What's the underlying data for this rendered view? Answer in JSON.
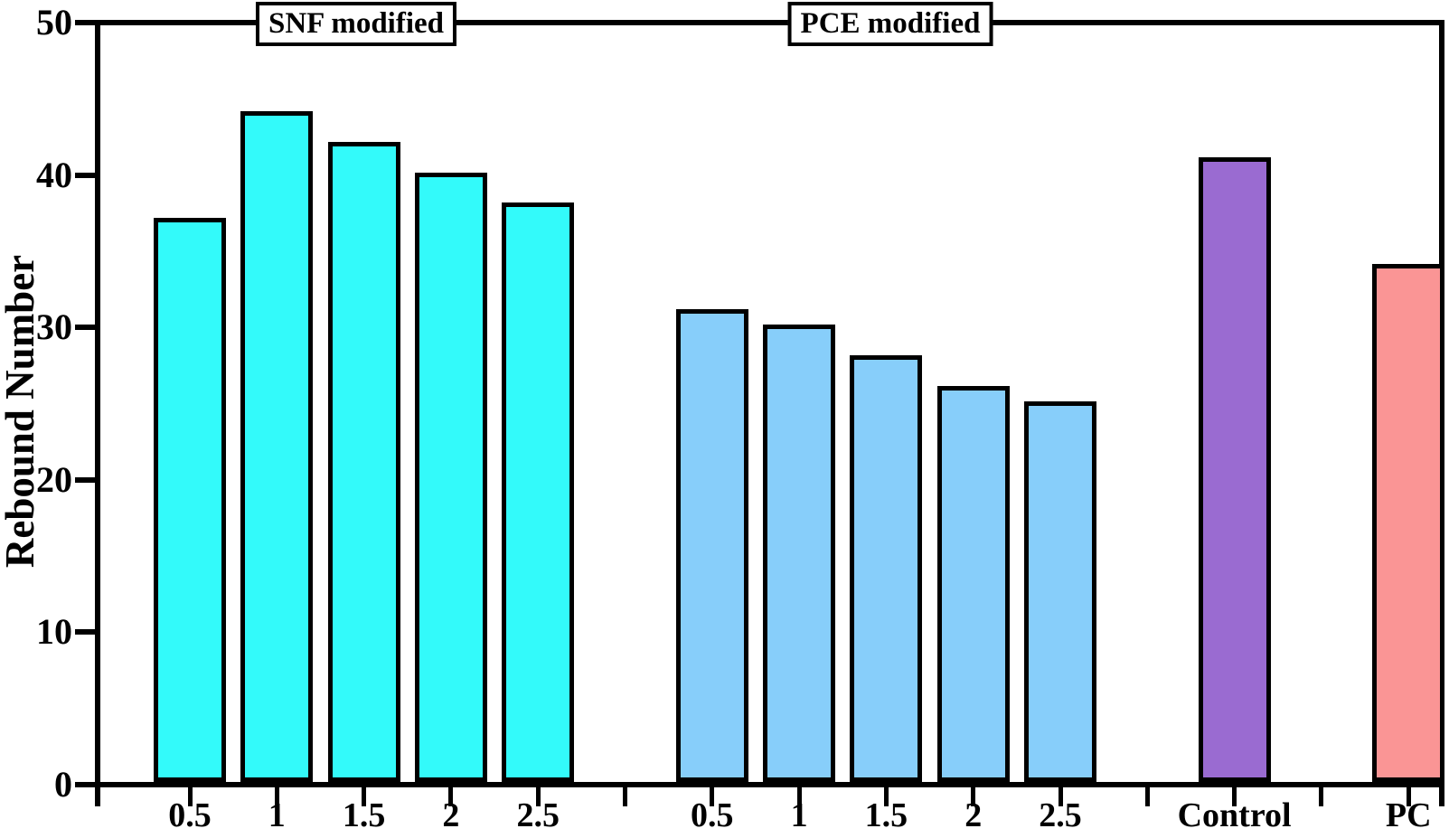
{
  "chart_data": {
    "type": "bar",
    "title": "",
    "ylabel": "Rebound Number",
    "xlabel": "",
    "ylim": [
      0,
      50
    ],
    "yticks": [
      0,
      10,
      20,
      30,
      40,
      50
    ],
    "grid": false,
    "legend": "none",
    "background": "#FFFFFF",
    "ink_color": "#000000",
    "group_labels": [
      {
        "text": "SNF modified"
      },
      {
        "text": "PCE modified"
      }
    ],
    "series": [
      {
        "name": "SNF modified",
        "color": "#33FAFA",
        "categories": [
          "0.5",
          "1",
          "1.5",
          "2",
          "2.5"
        ],
        "values": [
          37,
          44,
          42,
          40,
          38
        ],
        "slots": [
          0,
          1,
          2,
          3,
          4
        ]
      },
      {
        "name": "PCE modified",
        "color": "#87CEFA",
        "categories": [
          "0.5",
          "1",
          "1.5",
          "2",
          "2.5"
        ],
        "values": [
          31,
          30,
          28,
          26,
          25
        ],
        "slots": [
          6,
          7,
          8,
          9,
          10
        ]
      },
      {
        "name": "Control",
        "color": "#9A6BD1",
        "categories": [
          "Control"
        ],
        "values": [
          41
        ],
        "slots": [
          12
        ]
      },
      {
        "name": "PC",
        "color": "#FA9595",
        "categories": [
          "PC"
        ],
        "values": [
          34
        ],
        "slots": [
          14
        ]
      }
    ],
    "unlabeled_tick_slots": [
      5,
      11,
      13
    ]
  }
}
